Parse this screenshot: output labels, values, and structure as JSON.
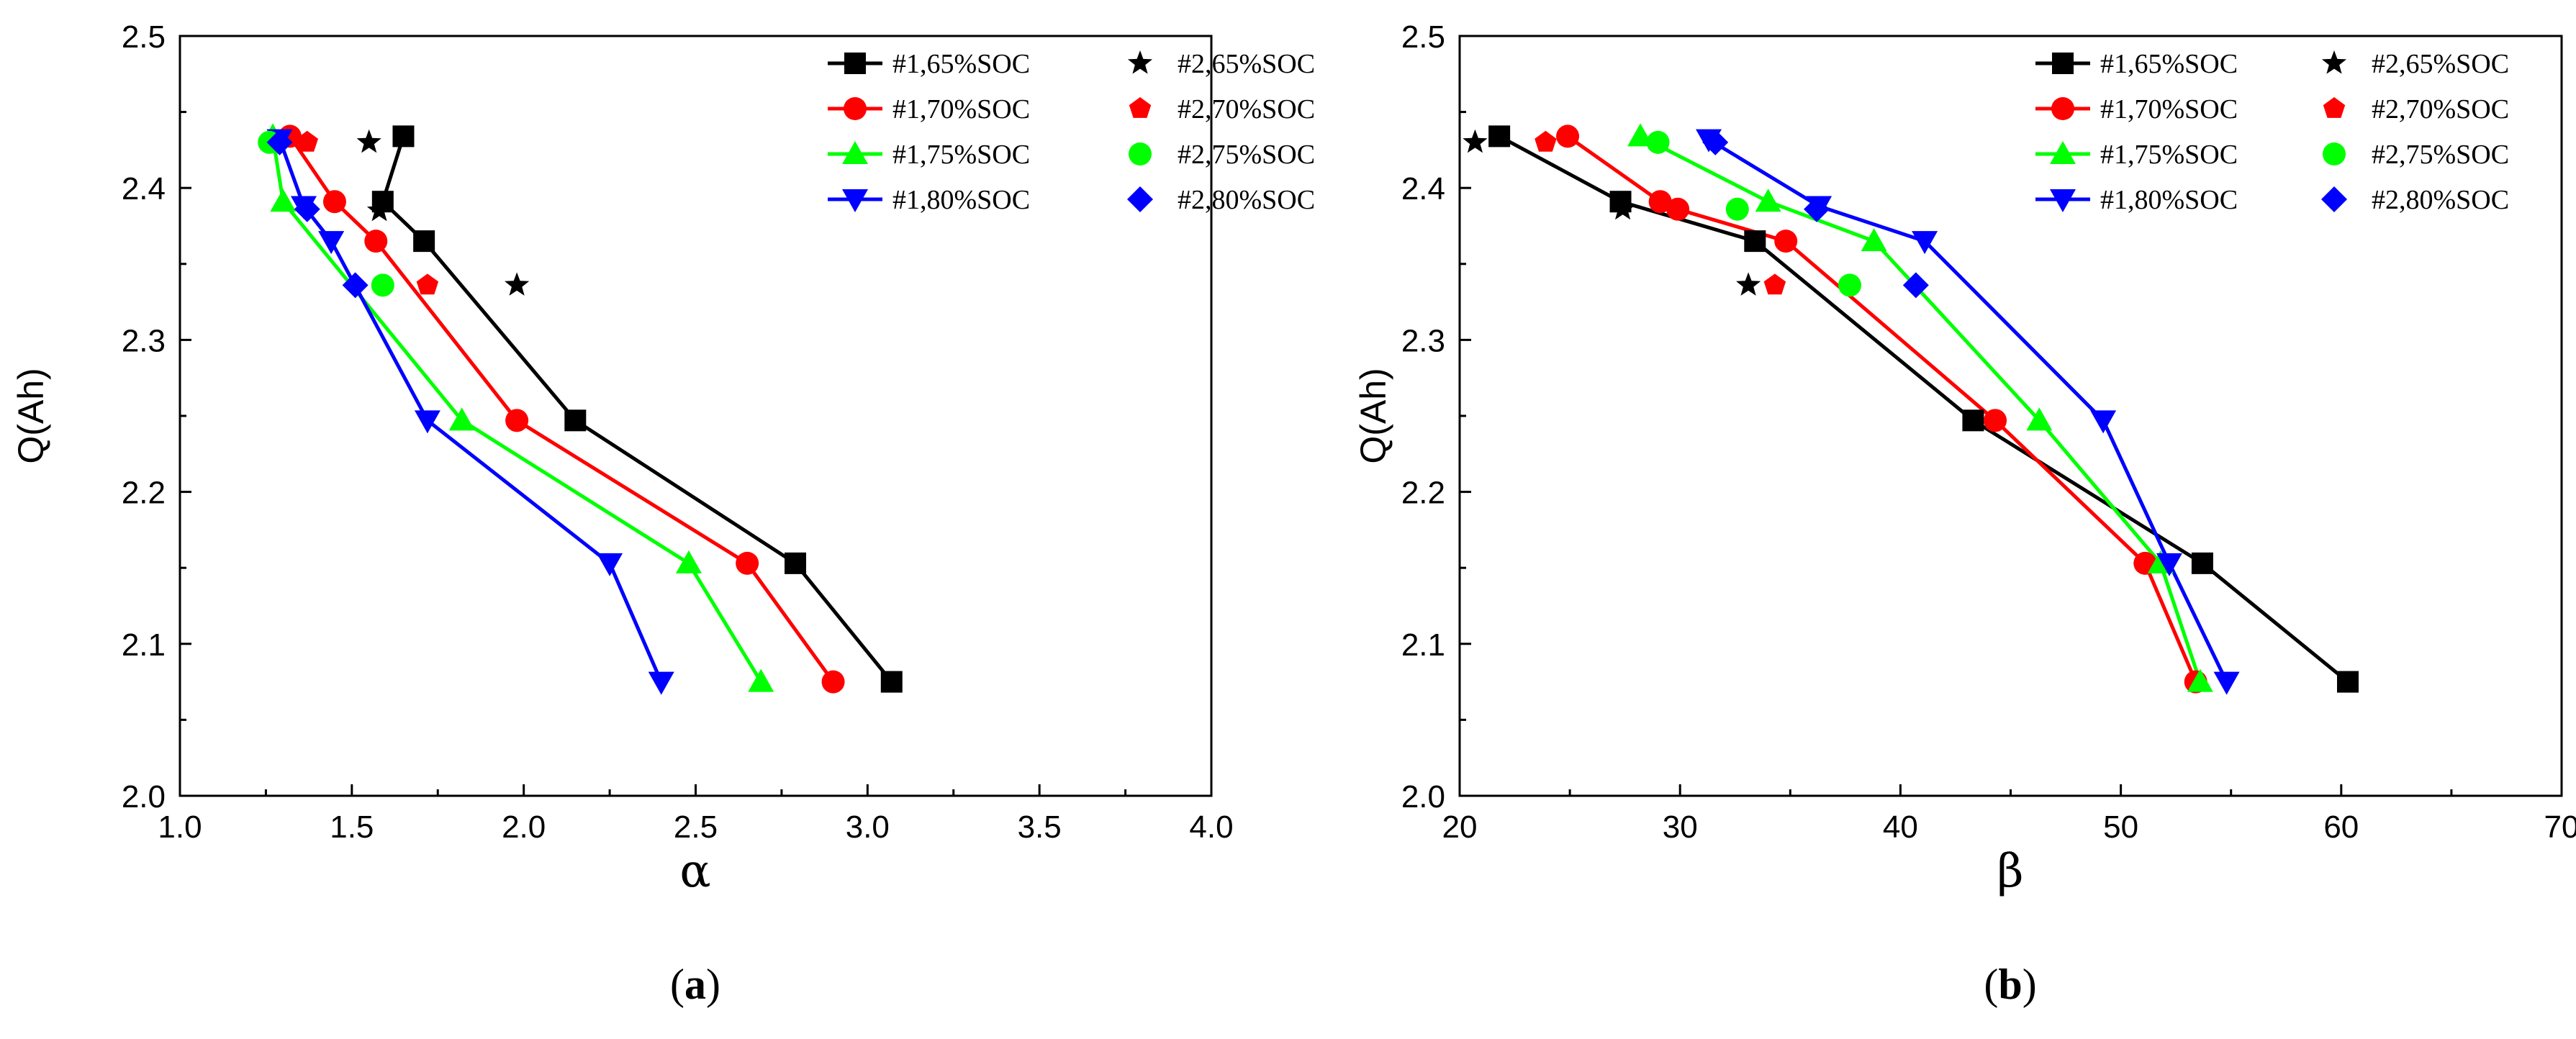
{
  "colors": {
    "#1,65%SOC": "#000000",
    "#1,70%SOC": "#ff0000",
    "#1,75%SOC": "#00ff00",
    "#1,80%SOC": "#0000ff",
    "#2,65%SOC": "#000000",
    "#2,70%SOC": "#ff0000",
    "#2,75%SOC": "#00ff00",
    "#2,80%SOC": "#0000ff"
  },
  "chart_data": [
    {
      "type": "line",
      "caption": "(a)",
      "caption_parts": [
        "(",
        "a",
        ")"
      ],
      "xlabel": "α",
      "ylabel": "Q(Ah)",
      "xlim": [
        1.0,
        4.0
      ],
      "ylim": [
        2.0,
        2.5
      ],
      "xticks": [
        "1.0",
        "1.5",
        "2.0",
        "2.5",
        "3.0",
        "3.5",
        "4.0"
      ],
      "yticks": [
        "2.0",
        "2.1",
        "2.2",
        "2.3",
        "2.4",
        "2.5"
      ],
      "legend_position": "top-right",
      "series": [
        {
          "name": "#1,65%SOC",
          "marker": "square",
          "line": true,
          "x": [
            3.07,
            2.79,
            2.15,
            1.71,
            1.59,
            1.65
          ],
          "y": [
            2.075,
            2.153,
            2.247,
            2.365,
            2.391,
            2.434
          ]
        },
        {
          "name": "#1,70%SOC",
          "marker": "circle",
          "line": true,
          "x": [
            2.9,
            2.65,
            1.98,
            1.57,
            1.45,
            1.32
          ],
          "y": [
            2.075,
            2.153,
            2.247,
            2.365,
            2.391,
            2.434
          ]
        },
        {
          "name": "#1,75%SOC",
          "marker": "triangle-up",
          "line": true,
          "x": [
            2.69,
            2.48,
            1.82,
            1.3,
            1.27
          ],
          "y": [
            2.075,
            2.153,
            2.247,
            2.391,
            2.434
          ]
        },
        {
          "name": "#1,80%SOC",
          "marker": "triangle-down",
          "line": true,
          "x": [
            2.4,
            2.25,
            1.72,
            1.44,
            1.36,
            1.29
          ],
          "y": [
            2.075,
            2.153,
            2.247,
            2.365,
            2.388,
            2.432
          ]
        },
        {
          "name": "#2,65%SOC",
          "marker": "star",
          "line": false,
          "x": [
            1.55,
            1.58,
            1.98
          ],
          "y": [
            2.43,
            2.385,
            2.336
          ]
        },
        {
          "name": "#2,70%SOC",
          "marker": "pentagon",
          "line": false,
          "x": [
            1.37,
            1.72
          ],
          "y": [
            2.43,
            2.336
          ]
        },
        {
          "name": "#2,75%SOC",
          "marker": "circle",
          "line": false,
          "x": [
            1.26,
            1.59
          ],
          "y": [
            2.43,
            2.336
          ]
        },
        {
          "name": "#2,80%SOC",
          "marker": "diamond",
          "line": false,
          "x": [
            1.29,
            1.37,
            1.51
          ],
          "y": [
            2.43,
            2.386,
            2.336
          ]
        }
      ]
    },
    {
      "type": "line",
      "caption": "(b)",
      "caption_parts": [
        "(",
        "b",
        ")"
      ],
      "xlabel": "β",
      "ylabel": "Q(Ah)",
      "xlim": [
        20,
        70
      ],
      "ylim": [
        2.0,
        2.5
      ],
      "xticks": [
        "20",
        "30",
        "40",
        "50",
        "60",
        "70"
      ],
      "yticks": [
        "2.0",
        "2.1",
        "2.2",
        "2.3",
        "2.4",
        "2.5"
      ],
      "legend_position": "top-right",
      "series": [
        {
          "name": "#1,65%SOC",
          "marker": "square",
          "line": true,
          "x": [
            60.3,
            53.7,
            43.3,
            33.4,
            27.3,
            21.8
          ],
          "y": [
            2.075,
            2.153,
            2.247,
            2.365,
            2.391,
            2.434
          ]
        },
        {
          "name": "#1,70%SOC",
          "marker": "circle",
          "line": true,
          "x": [
            53.4,
            51.1,
            44.3,
            34.8,
            29.9,
            29.1,
            24.9
          ],
          "y": [
            2.075,
            2.153,
            2.247,
            2.365,
            2.386,
            2.391,
            2.434
          ]
        },
        {
          "name": "#1,75%SOC",
          "marker": "triangle-up",
          "line": true,
          "x": [
            53.6,
            51.8,
            46.3,
            38.8,
            34.0,
            28.2
          ],
          "y": [
            2.075,
            2.153,
            2.247,
            2.365,
            2.391,
            2.434
          ]
        },
        {
          "name": "#1,80%SOC",
          "marker": "triangle-down",
          "line": true,
          "x": [
            54.8,
            52.2,
            49.2,
            41.1,
            36.3,
            31.3
          ],
          "y": [
            2.075,
            2.153,
            2.247,
            2.365,
            2.388,
            2.432
          ]
        },
        {
          "name": "#2,65%SOC",
          "marker": "star",
          "line": false,
          "x": [
            20.7,
            27.4,
            33.1
          ],
          "y": [
            2.43,
            2.386,
            2.336
          ]
        },
        {
          "name": "#2,70%SOC",
          "marker": "pentagon",
          "line": false,
          "x": [
            23.9,
            34.3
          ],
          "y": [
            2.43,
            2.336
          ]
        },
        {
          "name": "#2,75%SOC",
          "marker": "circle",
          "line": false,
          "x": [
            29.0,
            32.6,
            37.7
          ],
          "y": [
            2.43,
            2.386,
            2.336
          ]
        },
        {
          "name": "#2,80%SOC",
          "marker": "diamond",
          "line": false,
          "x": [
            31.6,
            36.2,
            40.7
          ],
          "y": [
            2.43,
            2.386,
            2.336
          ]
        }
      ]
    }
  ]
}
